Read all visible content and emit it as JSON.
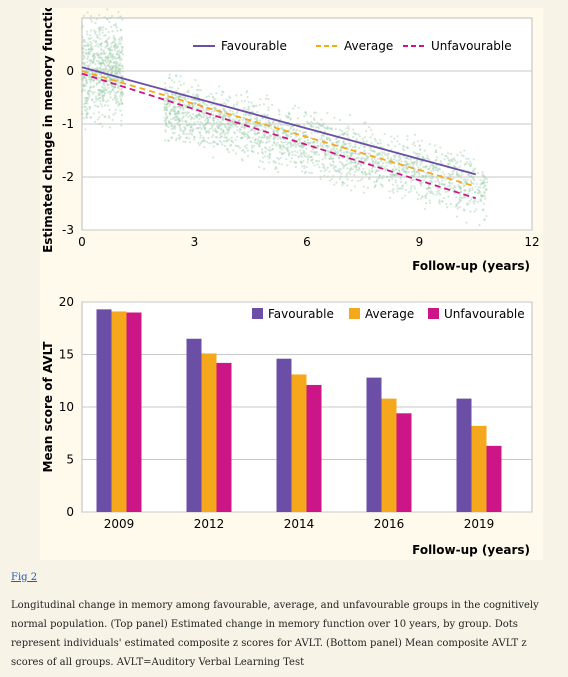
{
  "figure_link": "Fig 2",
  "caption": "Longitudinal change in memory among favourable, average, and unfavourable groups in the cognitively normal population. (Top panel) Estimated change in memory function over 10 years, by group. Dots represent individuals' estimated composite z scores for AVLT. (Bottom panel) Mean composite AVLT z scores of all groups. AVLT=Auditory Verbal Learning Test",
  "colors": {
    "favourable": "#6b4fa6",
    "average": "#f5a81c",
    "unfavourable": "#cc1587",
    "scatter": "#9fcfae",
    "grid": "#c8c8c8"
  },
  "chart_data": [
    {
      "type": "line",
      "ylabel": "Estimated change in memory function",
      "xlabel": "Follow-up (years)",
      "xlim": [
        0,
        12
      ],
      "ylim": [
        -3,
        1
      ],
      "xticks": [
        0,
        3,
        6,
        9,
        12
      ],
      "yticks": [
        0,
        -1,
        -2,
        -3
      ],
      "grid": "horizontal",
      "legend": "top-right",
      "series": [
        {
          "name": "Favourable",
          "style": "solid",
          "x": [
            0,
            10.5
          ],
          "y": [
            0.07,
            -1.95
          ]
        },
        {
          "name": "Average",
          "style": "dashed",
          "x": [
            0,
            10.5
          ],
          "y": [
            0.0,
            -2.18
          ]
        },
        {
          "name": "Unfavourable",
          "style": "dashed",
          "x": [
            0,
            10.5
          ],
          "y": [
            -0.05,
            -2.4
          ]
        }
      ],
      "scatter_clusters": [
        {
          "x": [
            0,
            1.1
          ],
          "y_center": 0.0,
          "y_spread": 0.85
        },
        {
          "x": [
            2.2,
            10.8
          ],
          "y_center_start": -0.7,
          "y_center_end": -2.2,
          "y_spread": 0.55
        }
      ]
    },
    {
      "type": "bar",
      "ylabel": "Mean score of AVLT",
      "xlabel": "Follow-up (years)",
      "categories": [
        "2009",
        "2012",
        "2014",
        "2016",
        "2019"
      ],
      "ylim": [
        0,
        20
      ],
      "yticks": [
        0,
        5,
        10,
        15,
        20
      ],
      "grid": "horizontal",
      "legend": "top-right",
      "series": [
        {
          "name": "Favourable",
          "values": [
            19.3,
            16.5,
            14.6,
            12.8,
            10.8
          ]
        },
        {
          "name": "Average",
          "values": [
            19.1,
            15.1,
            13.1,
            10.8,
            8.2
          ]
        },
        {
          "name": "Unfavourable",
          "values": [
            19.0,
            14.2,
            12.1,
            9.4,
            6.3
          ]
        }
      ]
    }
  ]
}
